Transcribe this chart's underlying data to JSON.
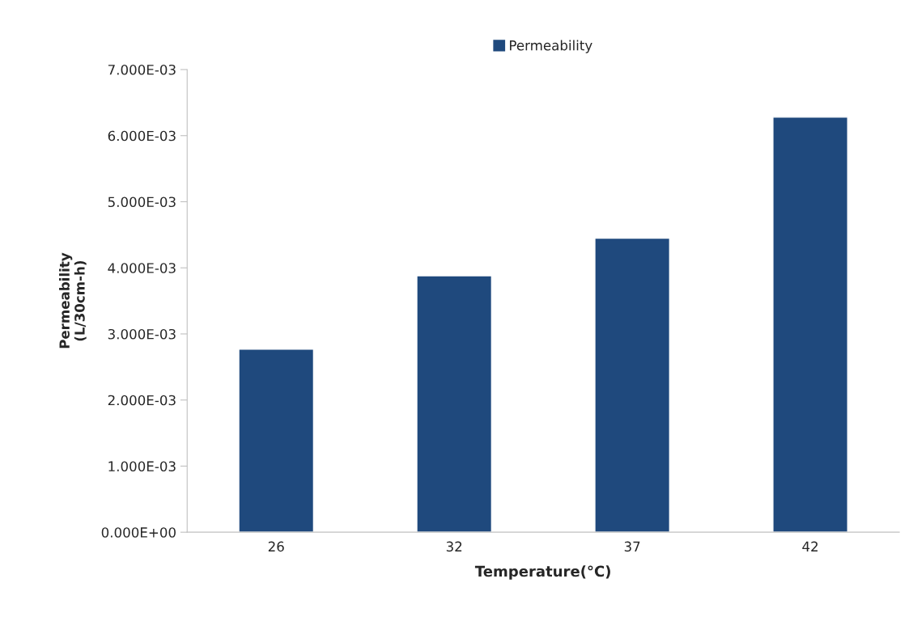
{
  "chart_data": {
    "type": "bar",
    "xlabel": "Temperature(°C)",
    "ylabel": "Permeability\n(L/30cm-h)",
    "categories": [
      "26",
      "32",
      "37",
      "42"
    ],
    "series": [
      {
        "name": "Permeability",
        "color": "#1f497d",
        "values": [
          0.00277,
          0.00388,
          0.00445,
          0.00628
        ]
      }
    ],
    "ylim": [
      0,
      0.007
    ],
    "yticks": [
      {
        "value": 0,
        "label": "0.000E+00"
      },
      {
        "value": 0.001,
        "label": "1.000E-03"
      },
      {
        "value": 0.002,
        "label": "2.000E-03"
      },
      {
        "value": 0.003,
        "label": "3.000E-03"
      },
      {
        "value": 0.004,
        "label": "4.000E-03"
      },
      {
        "value": 0.005,
        "label": "5.000E-03"
      },
      {
        "value": 0.006,
        "label": "6.000E-03"
      },
      {
        "value": 0.007,
        "label": "7.000E-03"
      }
    ],
    "grid": false,
    "legend": "top"
  }
}
